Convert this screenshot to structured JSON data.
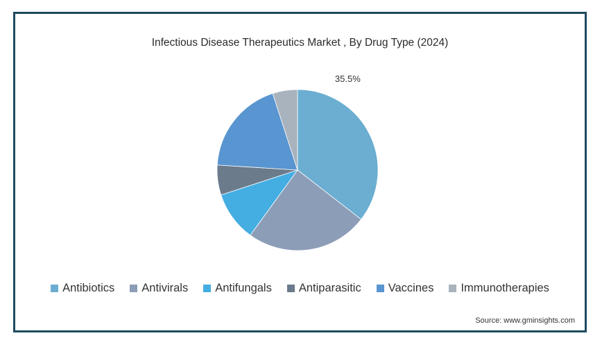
{
  "chart_data": {
    "type": "pie",
    "title": "Infectious Disease Therapeutics Market , By Drug Type (2024)",
    "categories": [
      "Antibiotics",
      "Antivirals",
      "Antifungals",
      "Antiparasitic",
      "Vaccines",
      "Immunotherapies"
    ],
    "values": [
      35.5,
      24.5,
      10,
      6,
      19,
      5
    ],
    "colors": [
      "#6baed1",
      "#8c9db7",
      "#44ade2",
      "#6b7b8c",
      "#5995d0",
      "#a8b3bd"
    ],
    "data_labels": [
      {
        "category": "Antibiotics",
        "text": "35.5%"
      }
    ],
    "legend_position": "bottom",
    "source": "Source: www.gminsights.com"
  }
}
